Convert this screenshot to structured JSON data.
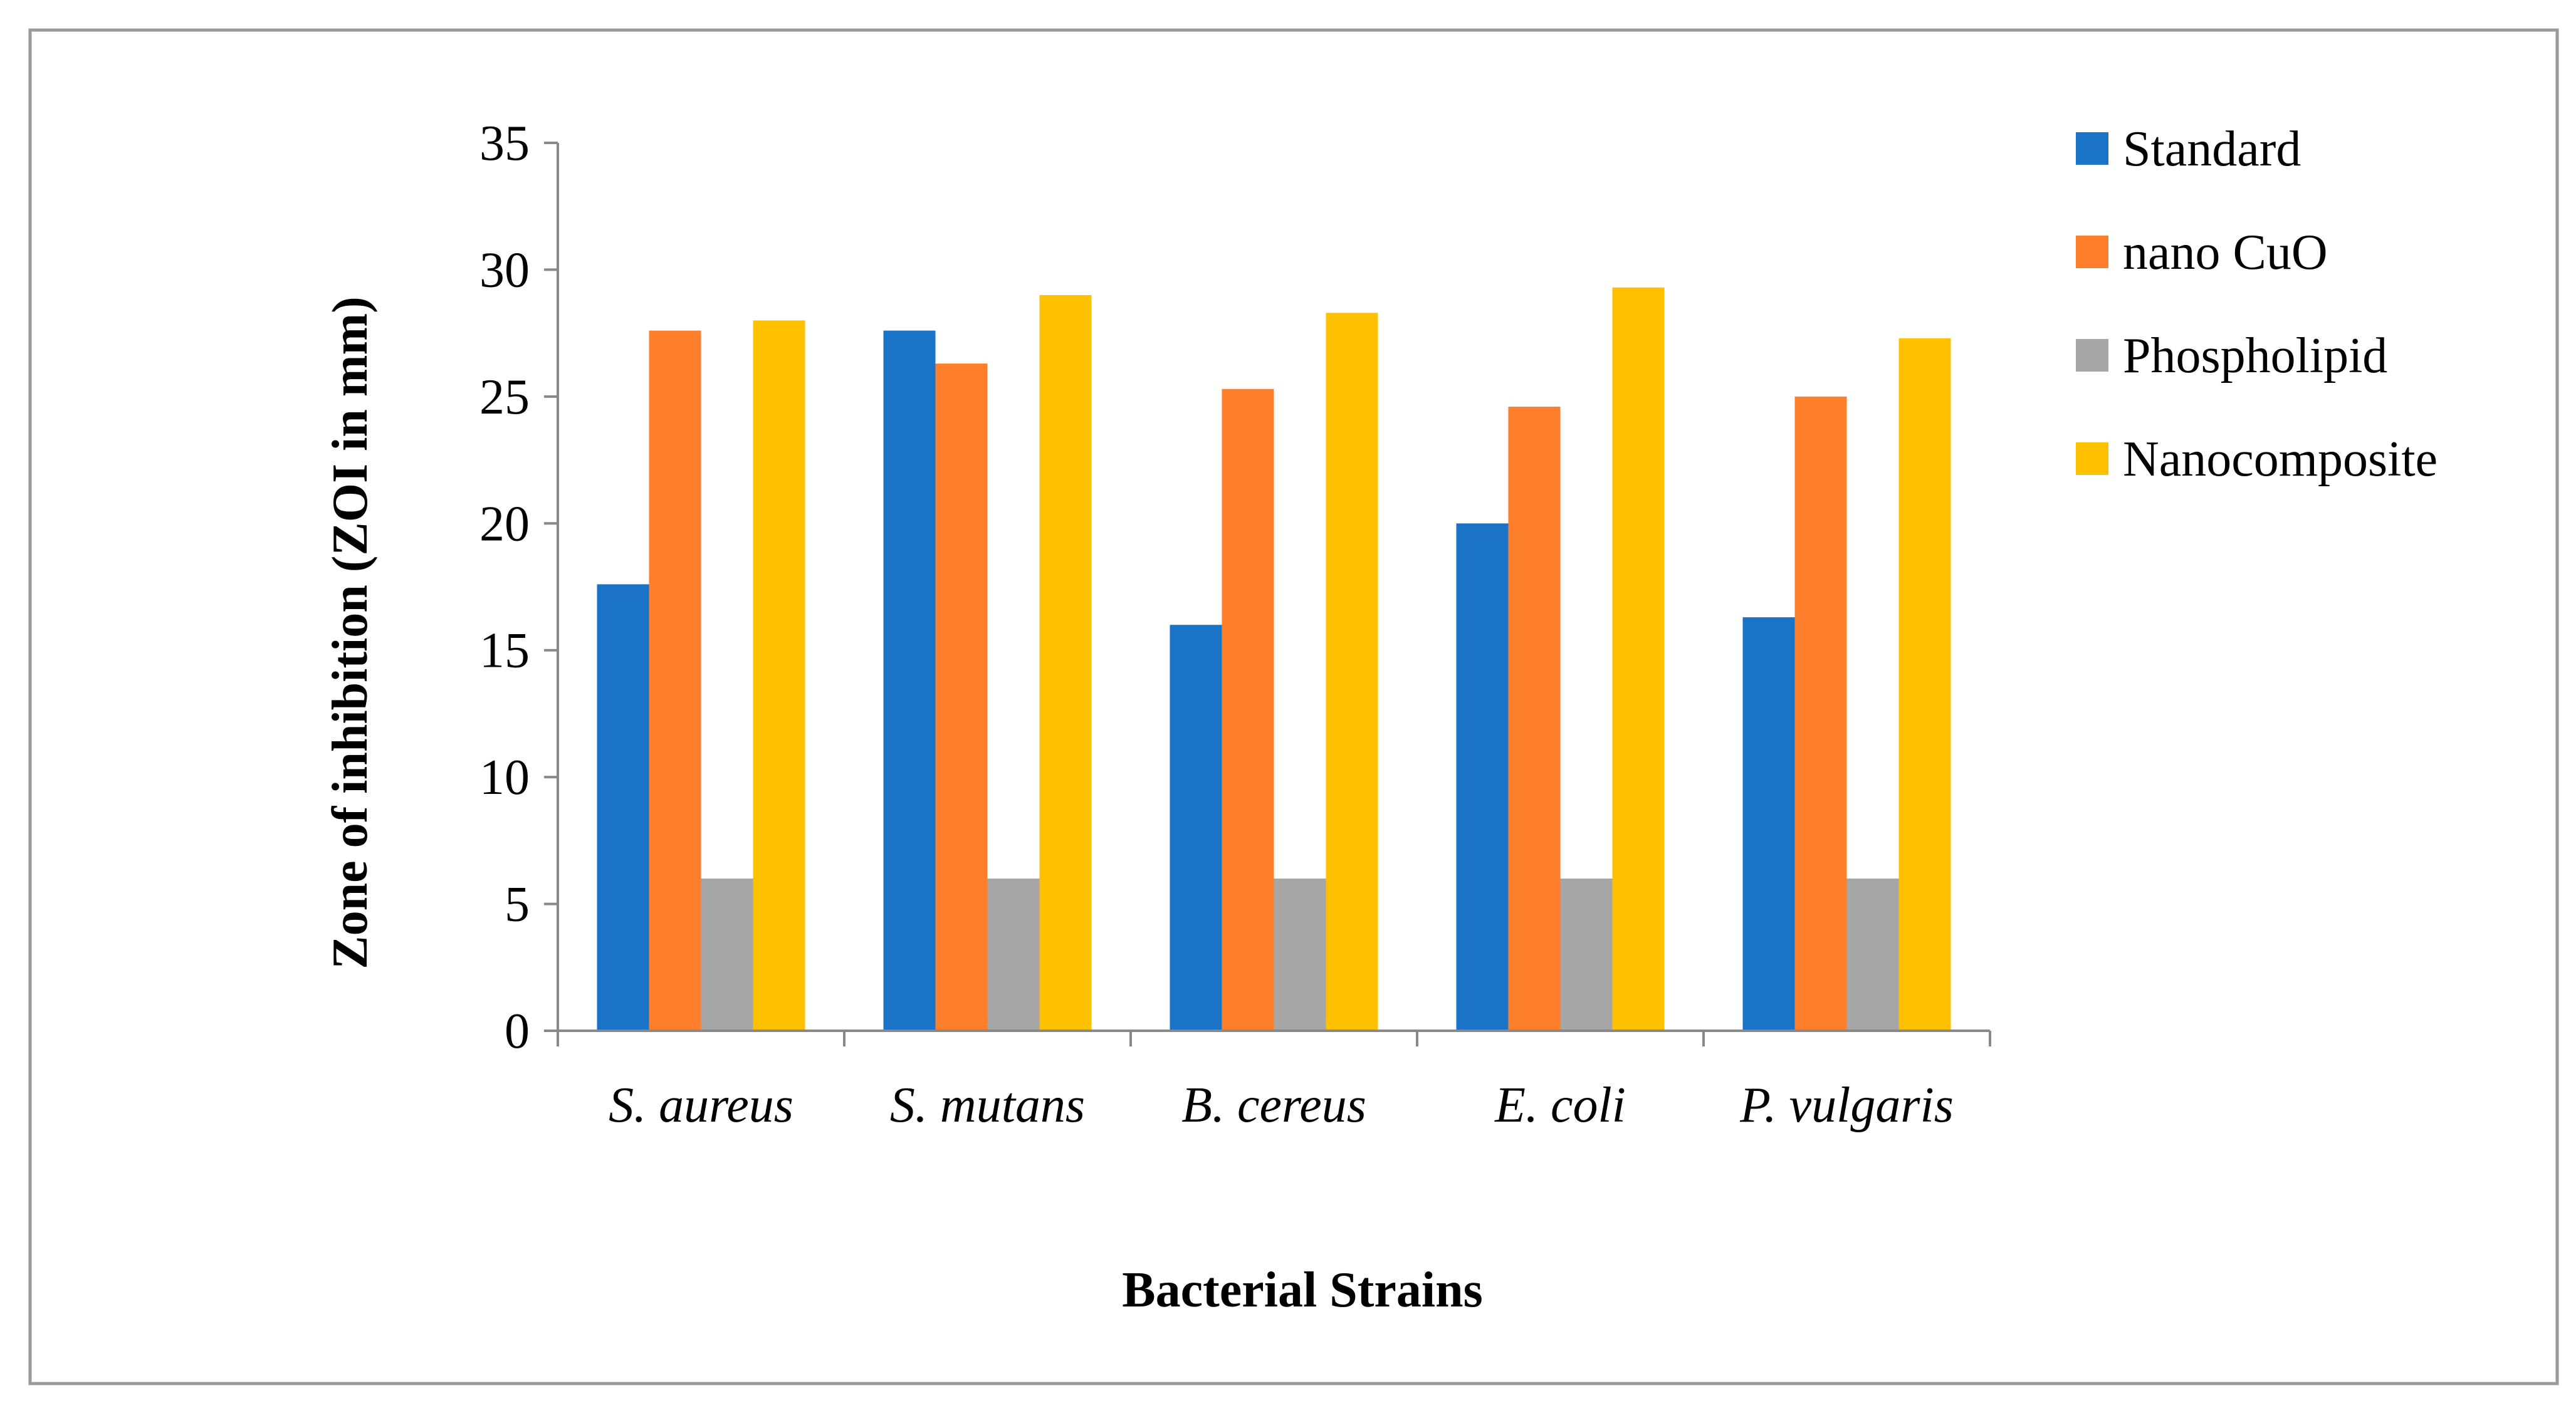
{
  "chart_data": {
    "type": "bar",
    "title": "",
    "xlabel": "Bacterial Strains",
    "ylabel": "Zone of inhibition (ZOI in mm)",
    "ylim": [
      0,
      35
    ],
    "yticks": [
      0,
      5,
      10,
      15,
      20,
      25,
      30,
      35
    ],
    "grid": false,
    "legend_position": "right",
    "categories": [
      "S. aureus",
      "S. mutans",
      "B. cereus",
      "E. coli",
      "P. vulgaris"
    ],
    "series": [
      {
        "name": "Standard",
        "color": "#1B73C8",
        "values": [
          17.6,
          27.6,
          16.0,
          20.0,
          16.3
        ]
      },
      {
        "name": "nano CuO",
        "color": "#FD7F2B",
        "values": [
          27.6,
          26.3,
          25.3,
          24.6,
          25.0
        ]
      },
      {
        "name": "Phospholipid",
        "color": "#A6A6A6",
        "values": [
          6.0,
          6.0,
          6.0,
          6.0,
          6.0
        ]
      },
      {
        "name": "Nanocomposite",
        "color": "#FFC000",
        "values": [
          28.0,
          29.0,
          28.3,
          29.3,
          27.3
        ]
      }
    ]
  }
}
